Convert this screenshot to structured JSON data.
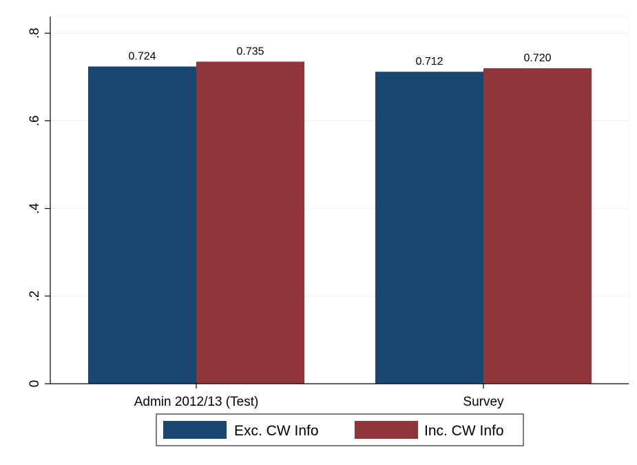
{
  "chart_data": {
    "type": "bar",
    "categories": [
      "Admin 2012/13 (Test)",
      "Survey"
    ],
    "series": [
      {
        "name": "Exc. CW Info",
        "values": [
          0.724,
          0.712
        ],
        "labels": [
          "0.724",
          "0.712"
        ],
        "color": "#1a476f"
      },
      {
        "name": "Inc. CW Info",
        "values": [
          0.735,
          0.72
        ],
        "labels": [
          "0.735",
          "0.720"
        ],
        "color": "#90353b"
      }
    ],
    "ylim": [
      0,
      0.8
    ],
    "yticks": [
      0,
      0.2,
      0.4,
      0.6,
      0.8
    ],
    "ytick_labels": [
      "0",
      ".2",
      ".4",
      ".6",
      ".8"
    ],
    "xlabel": "",
    "ylabel": "",
    "grid": true,
    "legend": "bottom-center",
    "grid_color": "#eaf2f3"
  }
}
